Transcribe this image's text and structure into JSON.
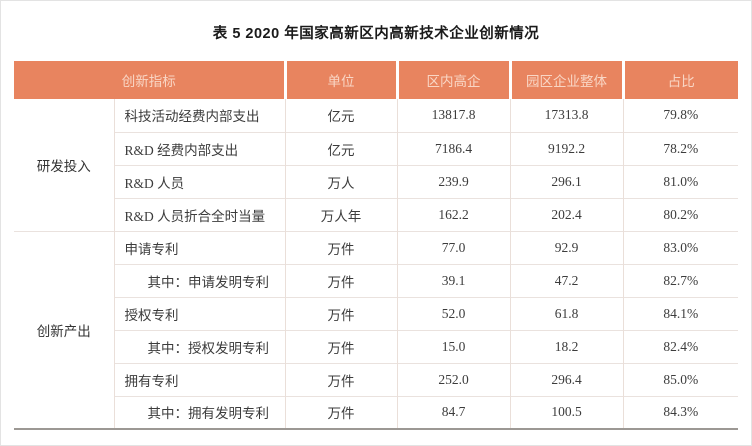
{
  "title": "表 5  2020 年国家高新区内高新技术企业创新情况",
  "colors": {
    "header_background": "#E8845F",
    "header_text": "#F9D6C5",
    "grid_line": "#EAE2DE",
    "bottom_border": "#9C9894"
  },
  "table": {
    "header": {
      "indicator": "创新指标",
      "unit": "单位",
      "in_zone": "区内高企",
      "park_total": "园区企业整体",
      "share": "占比"
    },
    "groups": [
      {
        "label": "研发投入",
        "rows": [
          {
            "indicator": "科技活动经费内部支出",
            "unit": "亿元",
            "in_zone": "13817.8",
            "park_total": "17313.8",
            "share": "79.8%",
            "indent": false
          },
          {
            "indicator": "R&D 经费内部支出",
            "unit": "亿元",
            "in_zone": "7186.4",
            "park_total": "9192.2",
            "share": "78.2%",
            "indent": false
          },
          {
            "indicator": "R&D 人员",
            "unit": "万人",
            "in_zone": "239.9",
            "park_total": "296.1",
            "share": "81.0%",
            "indent": false
          },
          {
            "indicator": "R&D 人员折合全时当量",
            "unit": "万人年",
            "in_zone": "162.2",
            "park_total": "202.4",
            "share": "80.2%",
            "indent": false
          }
        ]
      },
      {
        "label": "创新产出",
        "rows": [
          {
            "indicator": "申请专利",
            "unit": "万件",
            "in_zone": "77.0",
            "park_total": "92.9",
            "share": "83.0%",
            "indent": false
          },
          {
            "indicator": "其中：申请发明专利",
            "unit": "万件",
            "in_zone": "39.1",
            "park_total": "47.2",
            "share": "82.7%",
            "indent": true
          },
          {
            "indicator": "授权专利",
            "unit": "万件",
            "in_zone": "52.0",
            "park_total": "61.8",
            "share": "84.1%",
            "indent": false
          },
          {
            "indicator": "其中：授权发明专利",
            "unit": "万件",
            "in_zone": "15.0",
            "park_total": "18.2",
            "share": "82.4%",
            "indent": true
          },
          {
            "indicator": "拥有专利",
            "unit": "万件",
            "in_zone": "252.0",
            "park_total": "296.4",
            "share": "85.0%",
            "indent": false
          },
          {
            "indicator": "其中：拥有发明专利",
            "unit": "万件",
            "in_zone": "84.7",
            "park_total": "100.5",
            "share": "84.3%",
            "indent": true
          }
        ]
      }
    ]
  },
  "chart_data": {
    "type": "table",
    "title": "表 5  2020 年国家高新区内高新技术企业创新情况",
    "columns": [
      "创新指标",
      "单位",
      "区内高企",
      "园区企业整体",
      "占比"
    ],
    "rows": [
      [
        "研发投入 / 科技活动经费内部支出",
        "亿元",
        13817.8,
        17313.8,
        "79.8%"
      ],
      [
        "研发投入 / R&D 经费内部支出",
        "亿元",
        7186.4,
        9192.2,
        "78.2%"
      ],
      [
        "研发投入 / R&D 人员",
        "万人",
        239.9,
        296.1,
        "81.0%"
      ],
      [
        "研发投入 / R&D 人员折合全时当量",
        "万人年",
        162.2,
        202.4,
        "80.2%"
      ],
      [
        "创新产出 / 申请专利",
        "万件",
        77.0,
        92.9,
        "83.0%"
      ],
      [
        "创新产出 / 其中：申请发明专利",
        "万件",
        39.1,
        47.2,
        "82.7%"
      ],
      [
        "创新产出 / 授权专利",
        "万件",
        52.0,
        61.8,
        "84.1%"
      ],
      [
        "创新产出 / 其中：授权发明专利",
        "万件",
        15.0,
        18.2,
        "82.4%"
      ],
      [
        "创新产出 / 拥有专利",
        "万件",
        252.0,
        296.4,
        "85.0%"
      ],
      [
        "创新产出 / 其中：拥有发明专利",
        "万件",
        84.7,
        100.5,
        "84.3%"
      ]
    ]
  }
}
